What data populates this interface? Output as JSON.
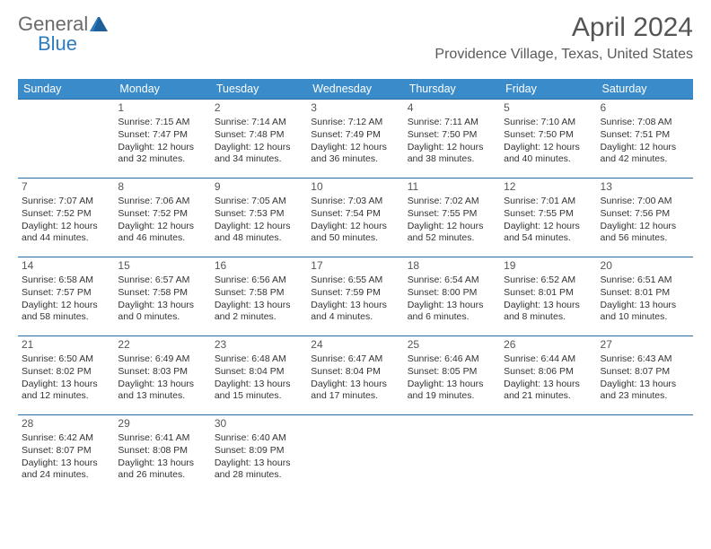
{
  "logo": {
    "word1": "General",
    "word2": "Blue"
  },
  "title": {
    "month": "April 2024",
    "location": "Providence Village, Texas, United States"
  },
  "colors": {
    "header_bg": "#3a8bc9",
    "header_text": "#ffffff",
    "row_border": "#2b6aa0",
    "text": "#333333",
    "muted": "#555555"
  },
  "columns": [
    "Sunday",
    "Monday",
    "Tuesday",
    "Wednesday",
    "Thursday",
    "Friday",
    "Saturday"
  ],
  "weeks": [
    [
      null,
      {
        "n": "1",
        "sunrise": "Sunrise: 7:15 AM",
        "sunset": "Sunset: 7:47 PM",
        "d1": "Daylight: 12 hours",
        "d2": "and 32 minutes."
      },
      {
        "n": "2",
        "sunrise": "Sunrise: 7:14 AM",
        "sunset": "Sunset: 7:48 PM",
        "d1": "Daylight: 12 hours",
        "d2": "and 34 minutes."
      },
      {
        "n": "3",
        "sunrise": "Sunrise: 7:12 AM",
        "sunset": "Sunset: 7:49 PM",
        "d1": "Daylight: 12 hours",
        "d2": "and 36 minutes."
      },
      {
        "n": "4",
        "sunrise": "Sunrise: 7:11 AM",
        "sunset": "Sunset: 7:50 PM",
        "d1": "Daylight: 12 hours",
        "d2": "and 38 minutes."
      },
      {
        "n": "5",
        "sunrise": "Sunrise: 7:10 AM",
        "sunset": "Sunset: 7:50 PM",
        "d1": "Daylight: 12 hours",
        "d2": "and 40 minutes."
      },
      {
        "n": "6",
        "sunrise": "Sunrise: 7:08 AM",
        "sunset": "Sunset: 7:51 PM",
        "d1": "Daylight: 12 hours",
        "d2": "and 42 minutes."
      }
    ],
    [
      {
        "n": "7",
        "sunrise": "Sunrise: 7:07 AM",
        "sunset": "Sunset: 7:52 PM",
        "d1": "Daylight: 12 hours",
        "d2": "and 44 minutes."
      },
      {
        "n": "8",
        "sunrise": "Sunrise: 7:06 AM",
        "sunset": "Sunset: 7:52 PM",
        "d1": "Daylight: 12 hours",
        "d2": "and 46 minutes."
      },
      {
        "n": "9",
        "sunrise": "Sunrise: 7:05 AM",
        "sunset": "Sunset: 7:53 PM",
        "d1": "Daylight: 12 hours",
        "d2": "and 48 minutes."
      },
      {
        "n": "10",
        "sunrise": "Sunrise: 7:03 AM",
        "sunset": "Sunset: 7:54 PM",
        "d1": "Daylight: 12 hours",
        "d2": "and 50 minutes."
      },
      {
        "n": "11",
        "sunrise": "Sunrise: 7:02 AM",
        "sunset": "Sunset: 7:55 PM",
        "d1": "Daylight: 12 hours",
        "d2": "and 52 minutes."
      },
      {
        "n": "12",
        "sunrise": "Sunrise: 7:01 AM",
        "sunset": "Sunset: 7:55 PM",
        "d1": "Daylight: 12 hours",
        "d2": "and 54 minutes."
      },
      {
        "n": "13",
        "sunrise": "Sunrise: 7:00 AM",
        "sunset": "Sunset: 7:56 PM",
        "d1": "Daylight: 12 hours",
        "d2": "and 56 minutes."
      }
    ],
    [
      {
        "n": "14",
        "sunrise": "Sunrise: 6:58 AM",
        "sunset": "Sunset: 7:57 PM",
        "d1": "Daylight: 12 hours",
        "d2": "and 58 minutes."
      },
      {
        "n": "15",
        "sunrise": "Sunrise: 6:57 AM",
        "sunset": "Sunset: 7:58 PM",
        "d1": "Daylight: 13 hours",
        "d2": "and 0 minutes."
      },
      {
        "n": "16",
        "sunrise": "Sunrise: 6:56 AM",
        "sunset": "Sunset: 7:58 PM",
        "d1": "Daylight: 13 hours",
        "d2": "and 2 minutes."
      },
      {
        "n": "17",
        "sunrise": "Sunrise: 6:55 AM",
        "sunset": "Sunset: 7:59 PM",
        "d1": "Daylight: 13 hours",
        "d2": "and 4 minutes."
      },
      {
        "n": "18",
        "sunrise": "Sunrise: 6:54 AM",
        "sunset": "Sunset: 8:00 PM",
        "d1": "Daylight: 13 hours",
        "d2": "and 6 minutes."
      },
      {
        "n": "19",
        "sunrise": "Sunrise: 6:52 AM",
        "sunset": "Sunset: 8:01 PM",
        "d1": "Daylight: 13 hours",
        "d2": "and 8 minutes."
      },
      {
        "n": "20",
        "sunrise": "Sunrise: 6:51 AM",
        "sunset": "Sunset: 8:01 PM",
        "d1": "Daylight: 13 hours",
        "d2": "and 10 minutes."
      }
    ],
    [
      {
        "n": "21",
        "sunrise": "Sunrise: 6:50 AM",
        "sunset": "Sunset: 8:02 PM",
        "d1": "Daylight: 13 hours",
        "d2": "and 12 minutes."
      },
      {
        "n": "22",
        "sunrise": "Sunrise: 6:49 AM",
        "sunset": "Sunset: 8:03 PM",
        "d1": "Daylight: 13 hours",
        "d2": "and 13 minutes."
      },
      {
        "n": "23",
        "sunrise": "Sunrise: 6:48 AM",
        "sunset": "Sunset: 8:04 PM",
        "d1": "Daylight: 13 hours",
        "d2": "and 15 minutes."
      },
      {
        "n": "24",
        "sunrise": "Sunrise: 6:47 AM",
        "sunset": "Sunset: 8:04 PM",
        "d1": "Daylight: 13 hours",
        "d2": "and 17 minutes."
      },
      {
        "n": "25",
        "sunrise": "Sunrise: 6:46 AM",
        "sunset": "Sunset: 8:05 PM",
        "d1": "Daylight: 13 hours",
        "d2": "and 19 minutes."
      },
      {
        "n": "26",
        "sunrise": "Sunrise: 6:44 AM",
        "sunset": "Sunset: 8:06 PM",
        "d1": "Daylight: 13 hours",
        "d2": "and 21 minutes."
      },
      {
        "n": "27",
        "sunrise": "Sunrise: 6:43 AM",
        "sunset": "Sunset: 8:07 PM",
        "d1": "Daylight: 13 hours",
        "d2": "and 23 minutes."
      }
    ],
    [
      {
        "n": "28",
        "sunrise": "Sunrise: 6:42 AM",
        "sunset": "Sunset: 8:07 PM",
        "d1": "Daylight: 13 hours",
        "d2": "and 24 minutes."
      },
      {
        "n": "29",
        "sunrise": "Sunrise: 6:41 AM",
        "sunset": "Sunset: 8:08 PM",
        "d1": "Daylight: 13 hours",
        "d2": "and 26 minutes."
      },
      {
        "n": "30",
        "sunrise": "Sunrise: 6:40 AM",
        "sunset": "Sunset: 8:09 PM",
        "d1": "Daylight: 13 hours",
        "d2": "and 28 minutes."
      },
      null,
      null,
      null,
      null
    ]
  ]
}
